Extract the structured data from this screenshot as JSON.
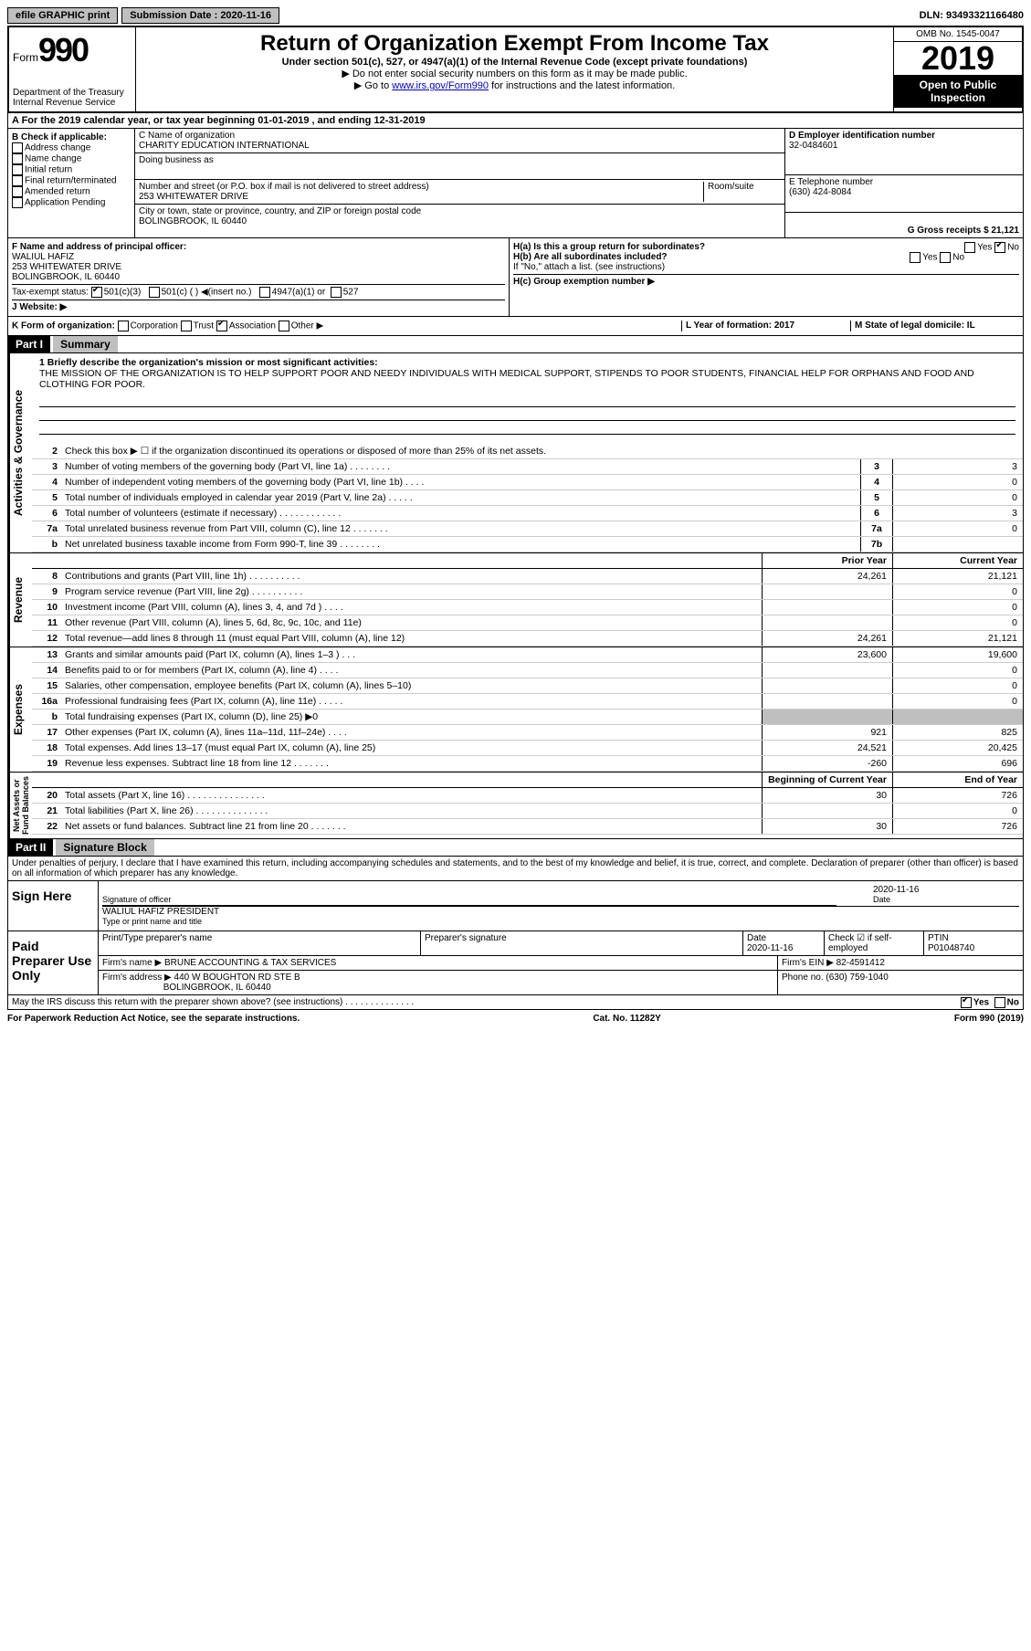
{
  "header": {
    "efile": "efile GRAPHIC print",
    "submission_label": "Submission Date : 2020-11-16",
    "dln": "DLN: 93493321166480"
  },
  "form": {
    "form_label": "Form",
    "form_number": "990",
    "title": "Return of Organization Exempt From Income Tax",
    "subtitle": "Under section 501(c), 527, or 4947(a)(1) of the Internal Revenue Code (except private foundations)",
    "note1": "▶ Do not enter social security numbers on this form as it may be made public.",
    "note2_pre": "▶ Go to ",
    "note2_link": "www.irs.gov/Form990",
    "note2_post": " for instructions and the latest information.",
    "dept": "Department of the Treasury",
    "irs": "Internal Revenue Service",
    "omb": "OMB No. 1545-0047",
    "year": "2019",
    "open": "Open to Public Inspection"
  },
  "row_a": "A For the 2019 calendar year, or tax year beginning 01-01-2019    , and ending 12-31-2019",
  "col_b": {
    "label": "B Check if applicable:",
    "opts": [
      "Address change",
      "Name change",
      "Initial return",
      "Final return/terminated",
      "Amended return",
      "Application Pending"
    ]
  },
  "col_c": {
    "name_label": "C Name of organization",
    "name": "CHARITY EDUCATION INTERNATIONAL",
    "dba_label": "Doing business as",
    "addr_label": "Number and street (or P.O. box if mail is not delivered to street address)",
    "room_label": "Room/suite",
    "addr": "253 WHITEWATER DRIVE",
    "city_label": "City or town, state or province, country, and ZIP or foreign postal code",
    "city": "BOLINGBROOK, IL  60440"
  },
  "col_d": {
    "ein_label": "D Employer identification number",
    "ein": "32-0484601",
    "phone_label": "E Telephone number",
    "phone": "(630) 424-8084",
    "gross_label": "G Gross receipts $ 21,121"
  },
  "row_f": {
    "label": "F  Name and address of principal officer:",
    "name": "WALIUL HAFIZ",
    "addr1": "253 WHITEWATER DRIVE",
    "addr2": "BOLINGBROOK, IL  60440"
  },
  "row_h": {
    "ha": "H(a)  Is this a group return for subordinates?",
    "hb": "H(b)  Are all subordinates included?",
    "hb_note": "If \"No,\" attach a list. (see instructions)",
    "hc": "H(c)  Group exemption number ▶",
    "yes": "Yes",
    "no": "No"
  },
  "row_i": {
    "label": "Tax-exempt status:",
    "opt1": "501(c)(3)",
    "opt2": "501(c) (  ) ◀(insert no.)",
    "opt3": "4947(a)(1) or",
    "opt4": "527"
  },
  "row_j": "J    Website: ▶",
  "row_k": {
    "label": "K Form of organization:",
    "corp": "Corporation",
    "trust": "Trust",
    "assoc": "Association",
    "other": "Other ▶",
    "l_label": "L Year of formation: 2017",
    "m_label": "M State of legal domicile: IL"
  },
  "part1": {
    "header": "Part I",
    "title": "Summary",
    "line1_label": "1  Briefly describe the organization's mission or most significant activities:",
    "mission": "THE MISSION OF THE ORGANIZATION IS TO HELP SUPPORT POOR AND NEEDY INDIVIDUALS WITH MEDICAL SUPPORT, STIPENDS TO POOR STUDENTS, FINANCIAL HELP FOR ORPHANS AND FOOD AND CLOTHING FOR POOR.",
    "line2": "Check this box ▶ ☐ if the organization discontinued its operations or disposed of more than 25% of its net assets.",
    "prior_year": "Prior Year",
    "current_year": "Current Year",
    "beg_year": "Beginning of Current Year",
    "end_year": "End of Year"
  },
  "governance_lines": [
    {
      "n": "3",
      "d": "Number of voting members of the governing body (Part VI, line 1a)  .   .   .   .   .   .   .   .",
      "b": "3",
      "v": "3"
    },
    {
      "n": "4",
      "d": "Number of independent voting members of the governing body (Part VI, line 1b)  .   .   .   .",
      "b": "4",
      "v": "0"
    },
    {
      "n": "5",
      "d": "Total number of individuals employed in calendar year 2019 (Part V, line 2a)  .   .   .   .   .",
      "b": "5",
      "v": "0"
    },
    {
      "n": "6",
      "d": "Total number of volunteers (estimate if necessary)   .   .   .   .   .   .   .   .   .   .   .   .",
      "b": "6",
      "v": "3"
    },
    {
      "n": "7a",
      "d": "Total unrelated business revenue from Part VIII, column (C), line 12  .   .   .   .   .   .   .",
      "b": "7a",
      "v": "0"
    },
    {
      "n": "b",
      "d": "Net unrelated business taxable income from Form 990-T, line 39   .   .   .   .   .   .   .   .",
      "b": "7b",
      "v": ""
    }
  ],
  "revenue_lines": [
    {
      "n": "8",
      "d": "Contributions and grants (Part VIII, line 1h)  .   .   .   .   .   .   .   .   .   .",
      "p": "24,261",
      "c": "21,121"
    },
    {
      "n": "9",
      "d": "Program service revenue (Part VIII, line 2g)  .   .   .   .   .   .   .   .   .   .",
      "p": "",
      "c": "0"
    },
    {
      "n": "10",
      "d": "Investment income (Part VIII, column (A), lines 3, 4, and 7d )   .   .   .   .",
      "p": "",
      "c": "0"
    },
    {
      "n": "11",
      "d": "Other revenue (Part VIII, column (A), lines 5, 6d, 8c, 9c, 10c, and 11e)",
      "p": "",
      "c": "0"
    },
    {
      "n": "12",
      "d": "Total revenue—add lines 8 through 11 (must equal Part VIII, column (A), line 12)",
      "p": "24,261",
      "c": "21,121"
    }
  ],
  "expense_lines": [
    {
      "n": "13",
      "d": "Grants and similar amounts paid (Part IX, column (A), lines 1–3 )  .   .   .",
      "p": "23,600",
      "c": "19,600"
    },
    {
      "n": "14",
      "d": "Benefits paid to or for members (Part IX, column (A), line 4)  .   .   .   .",
      "p": "",
      "c": "0"
    },
    {
      "n": "15",
      "d": "Salaries, other compensation, employee benefits (Part IX, column (A), lines 5–10)",
      "p": "",
      "c": "0"
    },
    {
      "n": "16a",
      "d": "Professional fundraising fees (Part IX, column (A), line 11e)  .   .   .   .   .",
      "p": "",
      "c": "0"
    },
    {
      "n": "b",
      "d": "Total fundraising expenses (Part IX, column (D), line 25) ▶0",
      "p": "gray",
      "c": "gray"
    },
    {
      "n": "17",
      "d": "Other expenses (Part IX, column (A), lines 11a–11d, 11f–24e)  .   .   .   .",
      "p": "921",
      "c": "825"
    },
    {
      "n": "18",
      "d": "Total expenses. Add lines 13–17 (must equal Part IX, column (A), line 25)",
      "p": "24,521",
      "c": "20,425"
    },
    {
      "n": "19",
      "d": "Revenue less expenses. Subtract line 18 from line 12  .   .   .   .   .   .   .",
      "p": "-260",
      "c": "696"
    }
  ],
  "net_lines": [
    {
      "n": "20",
      "d": "Total assets (Part X, line 16)  .   .   .   .   .   .   .   .   .   .   .   .   .   .   .",
      "p": "30",
      "c": "726"
    },
    {
      "n": "21",
      "d": "Total liabilities (Part X, line 26)  .   .   .   .   .   .   .   .   .   .   .   .   .   .",
      "p": "",
      "c": "0"
    },
    {
      "n": "22",
      "d": "Net assets or fund balances. Subtract line 21 from line 20  .   .   .   .   .   .   .",
      "p": "30",
      "c": "726"
    }
  ],
  "part2": {
    "header": "Part II",
    "title": "Signature Block",
    "declaration": "Under penalties of perjury, I declare that I have examined this return, including accompanying schedules and statements, and to the best of my knowledge and belief, it is true, correct, and complete. Declaration of preparer (other than officer) is based on all information of which preparer has any knowledge."
  },
  "sign": {
    "label": "Sign Here",
    "sig_label": "Signature of officer",
    "date": "2020-11-16",
    "date_label": "Date",
    "name": "WALIUL HAFIZ  PRESIDENT",
    "name_label": "Type or print name and title"
  },
  "paid": {
    "label": "Paid Preparer Use Only",
    "print_label": "Print/Type preparer's name",
    "sig_label": "Preparer's signature",
    "date_label": "Date",
    "date": "2020-11-16",
    "check_label": "Check ☑ if self-employed",
    "ptin_label": "PTIN",
    "ptin": "P01048740",
    "firm_name_label": "Firm's name     ▶",
    "firm_name": "BRUNE ACCOUNTING & TAX SERVICES",
    "firm_ein_label": "Firm's EIN ▶",
    "firm_ein": "82-4591412",
    "firm_addr_label": "Firm's address ▶",
    "firm_addr1": "440 W BOUGHTON RD STE B",
    "firm_addr2": "BOLINGBROOK, IL  60440",
    "phone_label": "Phone no.",
    "phone": "(630) 759-1040"
  },
  "may_irs": "May the IRS discuss this return with the preparer shown above? (see instructions)   .   .   .   .   .   .   .   .   .   .   .   .   .   .",
  "footer": {
    "left": "For Paperwork Reduction Act Notice, see the separate instructions.",
    "mid": "Cat. No. 11282Y",
    "right": "Form 990 (2019)"
  }
}
